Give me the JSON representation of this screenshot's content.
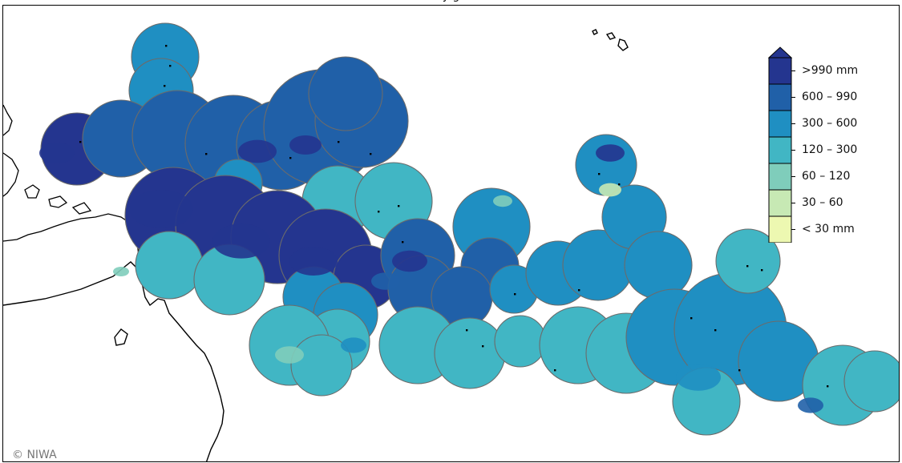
{
  "map": {
    "title": "y    g",
    "credit": "© NIWA"
  },
  "legend": {
    "unit": "mm",
    "classes": [
      {
        "label": ">990 mm",
        "color": "#24358f",
        "min": 990,
        "max": null
      },
      {
        "label": "600 – 990",
        "color": "#2060a8",
        "min": 600,
        "max": 990
      },
      {
        "label": "300 – 600",
        "color": "#1f8fc2",
        "min": 300,
        "max": 600
      },
      {
        "label": "120 – 300",
        "color": "#41b6c4",
        "min": 120,
        "max": 300
      },
      {
        "label": "60 – 120",
        "color": "#7fcdbb",
        "min": 60,
        "max": 120
      },
      {
        "label": "30 – 60",
        "color": "#c7e9b4",
        "min": 30,
        "max": 60
      },
      {
        "label": "< 30 mm",
        "color": "#edf8b1",
        "min": null,
        "max": 30
      }
    ]
  },
  "colors": {
    "zone_border": "#6b6b6b",
    "land": "#000000"
  }
}
